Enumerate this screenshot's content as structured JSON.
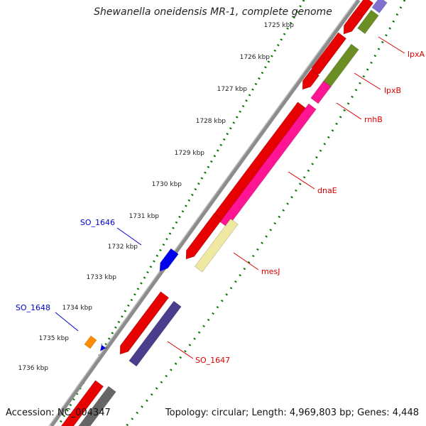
{
  "title": "Shewanella oneidensis MR-1, complete genome",
  "footer": {
    "accession": "Accession: NC_004347",
    "summary": "Topology: circular; Length: 4,969,803 bp; Genes: 4,448"
  },
  "ticks": [
    "1725 kbp",
    "1726 kbp",
    "1727 kbp",
    "1728 kbp",
    "1729 kbp",
    "1730 kbp",
    "1731 kbp",
    "1732 kbp",
    "1733 kbp",
    "1734 kbp",
    "1735 kbp",
    "1736 kbp"
  ],
  "gene_labels": [
    {
      "name": "lpxA",
      "color": "#dd0000"
    },
    {
      "name": "lpxB",
      "color": "#dd0000"
    },
    {
      "name": "rnhB",
      "color": "#dd0000"
    },
    {
      "name": "dnaE",
      "color": "#dd0000"
    },
    {
      "name": "mesJ",
      "color": "#dd0000"
    },
    {
      "name": "SO_1647",
      "color": "#dd0000"
    },
    {
      "name": "SO_1646",
      "color": "#0000cc"
    },
    {
      "name": "SO_1648",
      "color": "#0000cc"
    }
  ],
  "colors": {
    "backbone": "#8c8c8c",
    "dots": "#007700",
    "forward_cds": "#e60000",
    "reverse_lpx": "#6b8e23",
    "reverse_rnhb_dnae": "#ff1493",
    "reverse_mesj": "#eee8a0",
    "reverse_so1647": "#4b3c8c",
    "reverse_other": "#666666",
    "small_blue": "#0000ee",
    "small_orange": "#ff8c00",
    "purple_top": "#8070d0"
  }
}
